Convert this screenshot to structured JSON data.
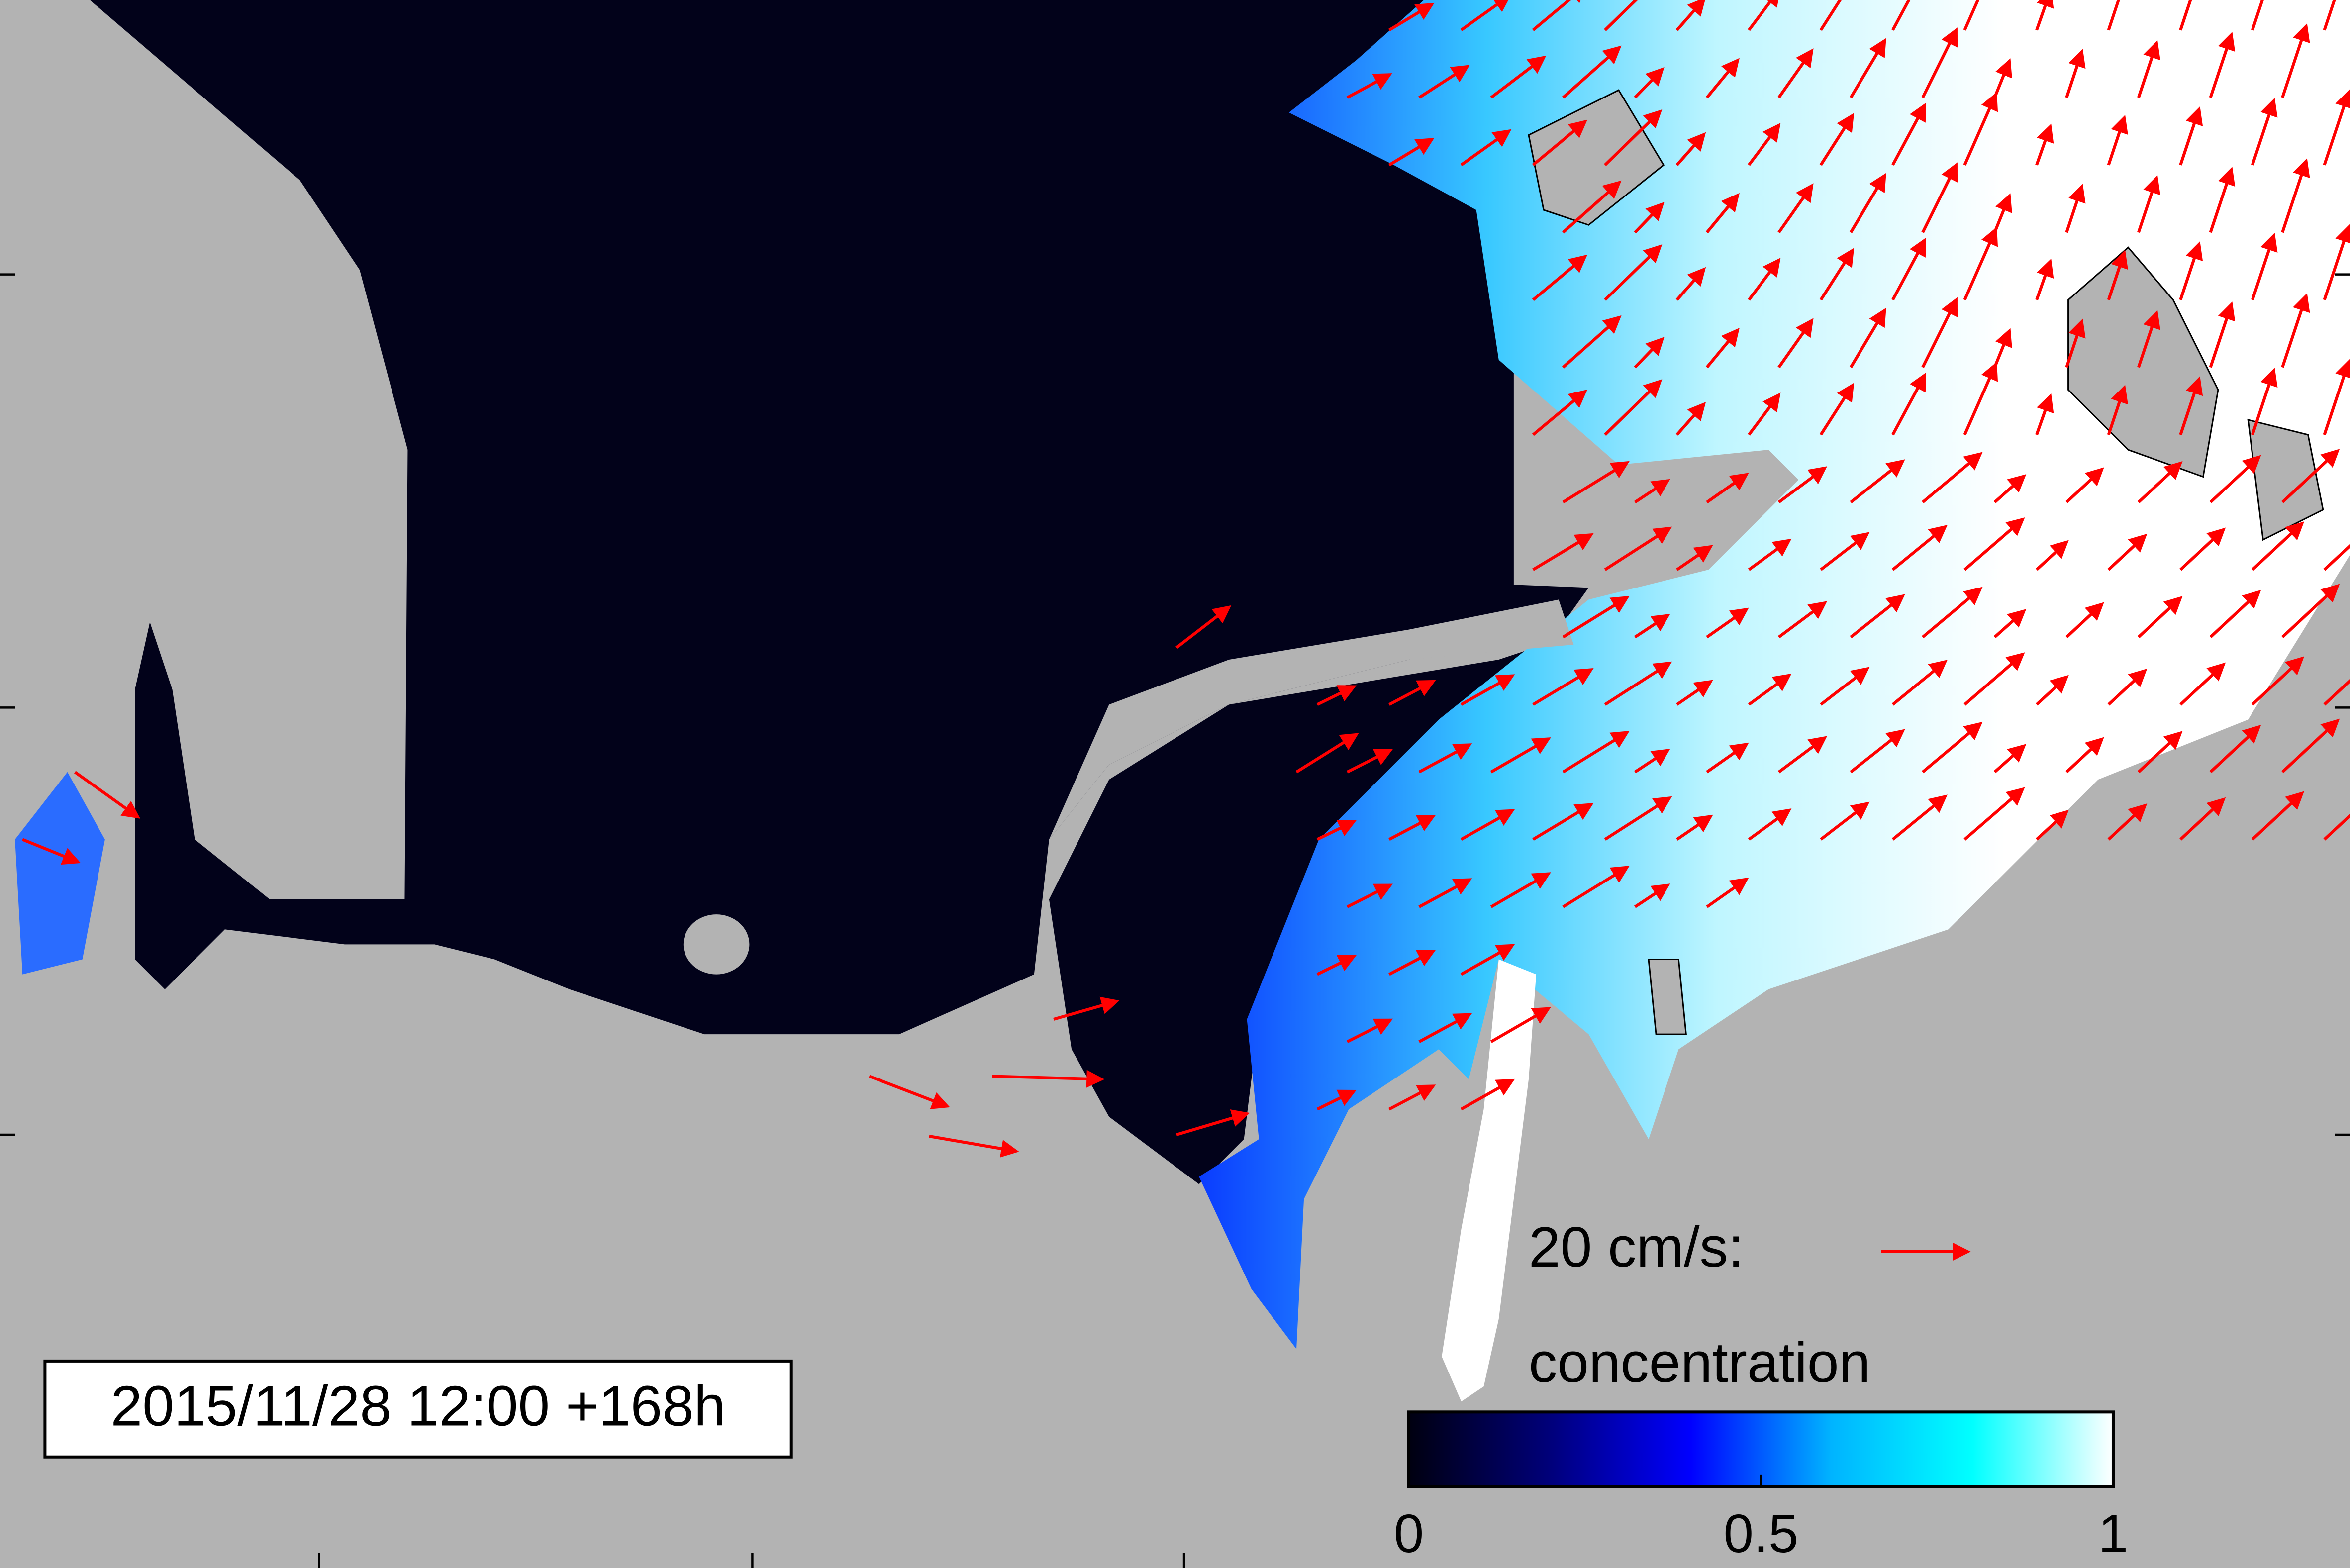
{
  "timestamp": "2015/11/28 12:00 +168h",
  "vector_legend": {
    "label": "20 cm/s:"
  },
  "colorbar": {
    "label": "concentration",
    "lim": [
      0,
      1
    ],
    "ticks": [
      0,
      0.5,
      1
    ],
    "colors": [
      "#000010",
      "#00007a",
      "#0000ff",
      "#00b4ff",
      "#00ffff",
      "#ffffff"
    ]
  }
}
